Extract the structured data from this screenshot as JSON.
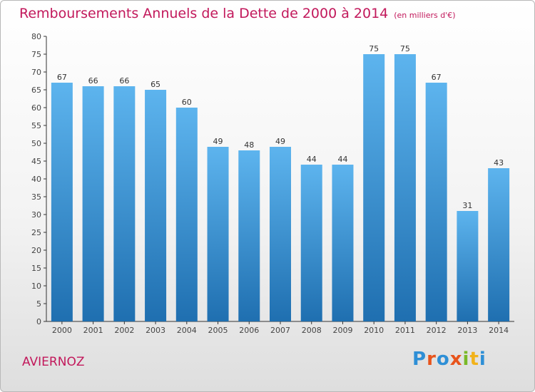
{
  "title": "Remboursements Annuels de la Dette de 2000 à 2014",
  "unit": "(en milliers d'€)",
  "commune": "AVIERNOZ",
  "logo": {
    "letters": [
      "P",
      "r",
      "o",
      "x",
      "i",
      "t",
      "i"
    ],
    "colors": [
      "#2e8fd6",
      "#e8541c",
      "#2e8fd6",
      "#e8541c",
      "#79b928",
      "#f2b21a",
      "#2e8fd6"
    ]
  },
  "colors": {
    "title": "#c2185b",
    "bar_top": "#5db4ee",
    "bar_bottom": "#1f6fb0",
    "axis": "#333333"
  },
  "chart_data": {
    "type": "bar",
    "categories": [
      "2000",
      "2001",
      "2002",
      "2003",
      "2004",
      "2005",
      "2006",
      "2007",
      "2008",
      "2009",
      "2010",
      "2011",
      "2012",
      "2013",
      "2014"
    ],
    "values": [
      67,
      66,
      66,
      65,
      60,
      49,
      48,
      49,
      44,
      44,
      75,
      75,
      67,
      31,
      43
    ],
    "ylim": [
      0,
      80
    ],
    "ytick_step": 5,
    "grid": false
  }
}
